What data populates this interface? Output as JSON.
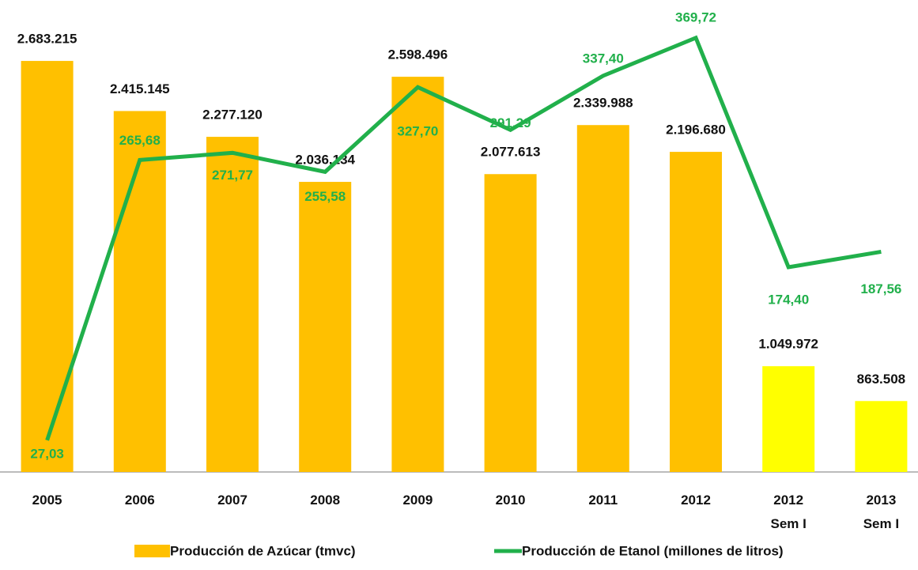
{
  "chart_data": {
    "type": "bar-line",
    "categories": [
      "2005",
      "2006",
      "2007",
      "2008",
      "2009",
      "2010",
      "2011",
      "2012",
      "2012\nSem I",
      "2013\nSem I"
    ],
    "ylim": [
      484000,
      2840000
    ],
    "y2lim": [
      0,
      375
    ],
    "series": [
      {
        "name": "Producción de Azúcar (tmvc)",
        "type": "bar",
        "color": "#ffc000",
        "colors": [
          "#ffc000",
          "#ffc000",
          "#ffc000",
          "#ffc000",
          "#ffc000",
          "#ffc000",
          "#ffc000",
          "#ffc000",
          "#ffff00",
          "#ffff00"
        ],
        "values": [
          2683215,
          2415145,
          2277120,
          2036134,
          2598496,
          2077613,
          2339988,
          2196680,
          1049972,
          863508
        ],
        "value_labels": [
          "2.683.215",
          "2.415.145",
          "2.277.120",
          "2.036.134",
          "2.598.496",
          "2.077.613",
          "2.339.988",
          "2.196.680",
          "1.049.972",
          "863.508"
        ]
      },
      {
        "name": "Producción de Etanol (millones de litros)",
        "type": "line",
        "axis": "y2",
        "color": "#21b04b",
        "values": [
          27.03,
          265.68,
          271.77,
          255.58,
          327.7,
          291.29,
          337.4,
          369.72,
          174.4,
          187.56
        ],
        "value_labels": [
          "27,03",
          "265,68",
          "271,77",
          "255,58",
          "327,70",
          "291,29",
          "337,40",
          "369,72",
          "174,40",
          "187,56"
        ]
      }
    ]
  }
}
